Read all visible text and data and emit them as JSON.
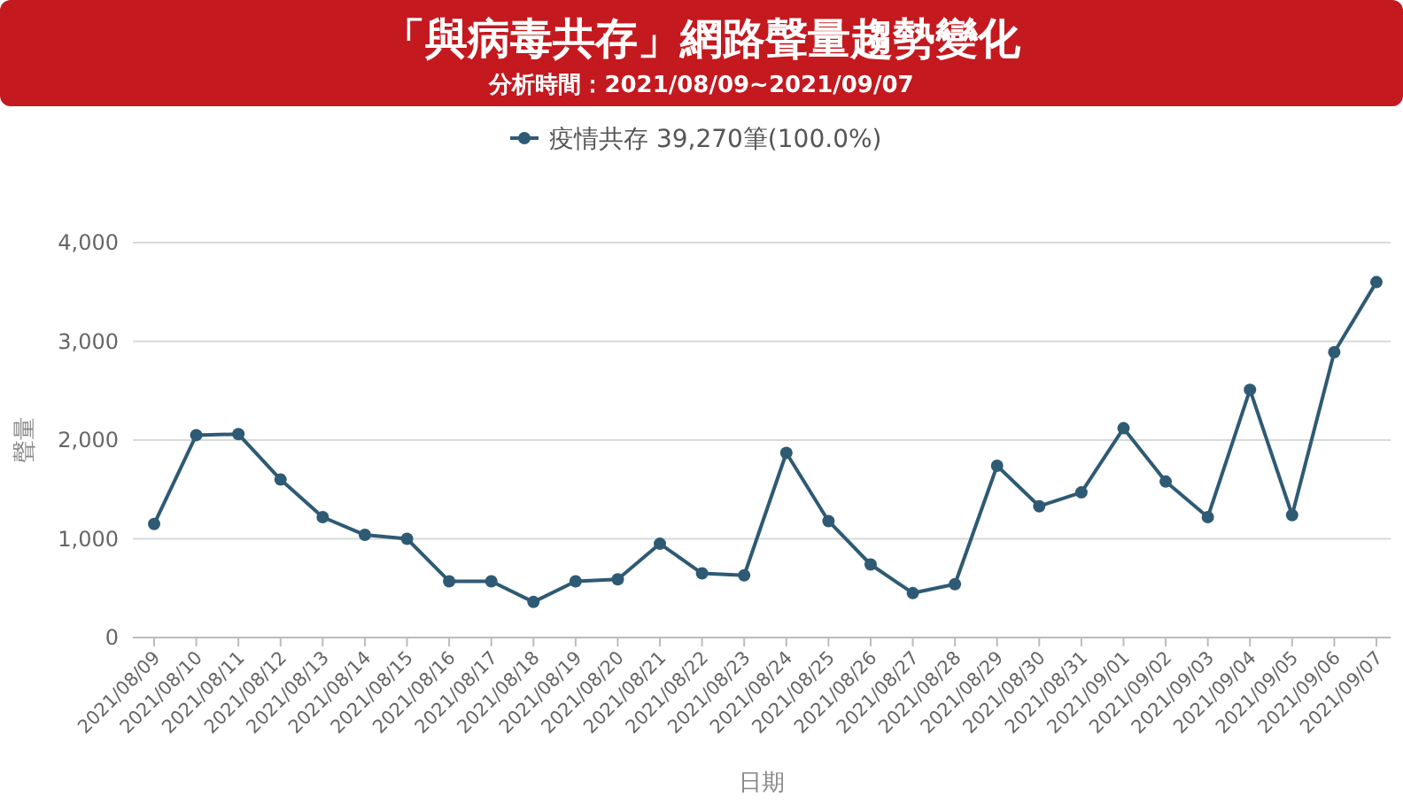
{
  "chart_data": {
    "type": "line",
    "title": "「與病毒共存」網路聲量趨勢變化",
    "subtitle": "分析時間：2021/08/09~2021/09/07",
    "xlabel": "日期",
    "ylabel": "聲量",
    "categories": [
      "2021/08/09",
      "2021/08/10",
      "2021/08/11",
      "2021/08/12",
      "2021/08/13",
      "2021/08/14",
      "2021/08/15",
      "2021/08/16",
      "2021/08/17",
      "2021/08/18",
      "2021/08/19",
      "2021/08/20",
      "2021/08/21",
      "2021/08/22",
      "2021/08/23",
      "2021/08/24",
      "2021/08/25",
      "2021/08/26",
      "2021/08/27",
      "2021/08/28",
      "2021/08/29",
      "2021/08/30",
      "2021/08/31",
      "2021/09/01",
      "2021/09/02",
      "2021/09/03",
      "2021/09/04",
      "2021/09/05",
      "2021/09/06",
      "2021/09/07"
    ],
    "series": [
      {
        "name": "疫情共存 39,270筆(100.0%)",
        "color": "#2e5a74",
        "values": [
          1150,
          2050,
          2060,
          1600,
          1220,
          1040,
          1000,
          570,
          570,
          360,
          570,
          590,
          950,
          650,
          630,
          1870,
          1180,
          740,
          450,
          540,
          1740,
          1330,
          1470,
          2120,
          1580,
          1220,
          2510,
          1240,
          2890,
          3600
        ]
      }
    ],
    "ylim": [
      0,
      4000
    ],
    "yticks": [
      {
        "value": 0,
        "label": "0"
      },
      {
        "value": 1000,
        "label": "1,000"
      },
      {
        "value": 2000,
        "label": "2,000"
      },
      {
        "value": 3000,
        "label": "3,000"
      },
      {
        "value": 4000,
        "label": "4,000"
      }
    ],
    "grid": "y",
    "legend": "top",
    "marker": "circle",
    "line_style": "solid"
  }
}
